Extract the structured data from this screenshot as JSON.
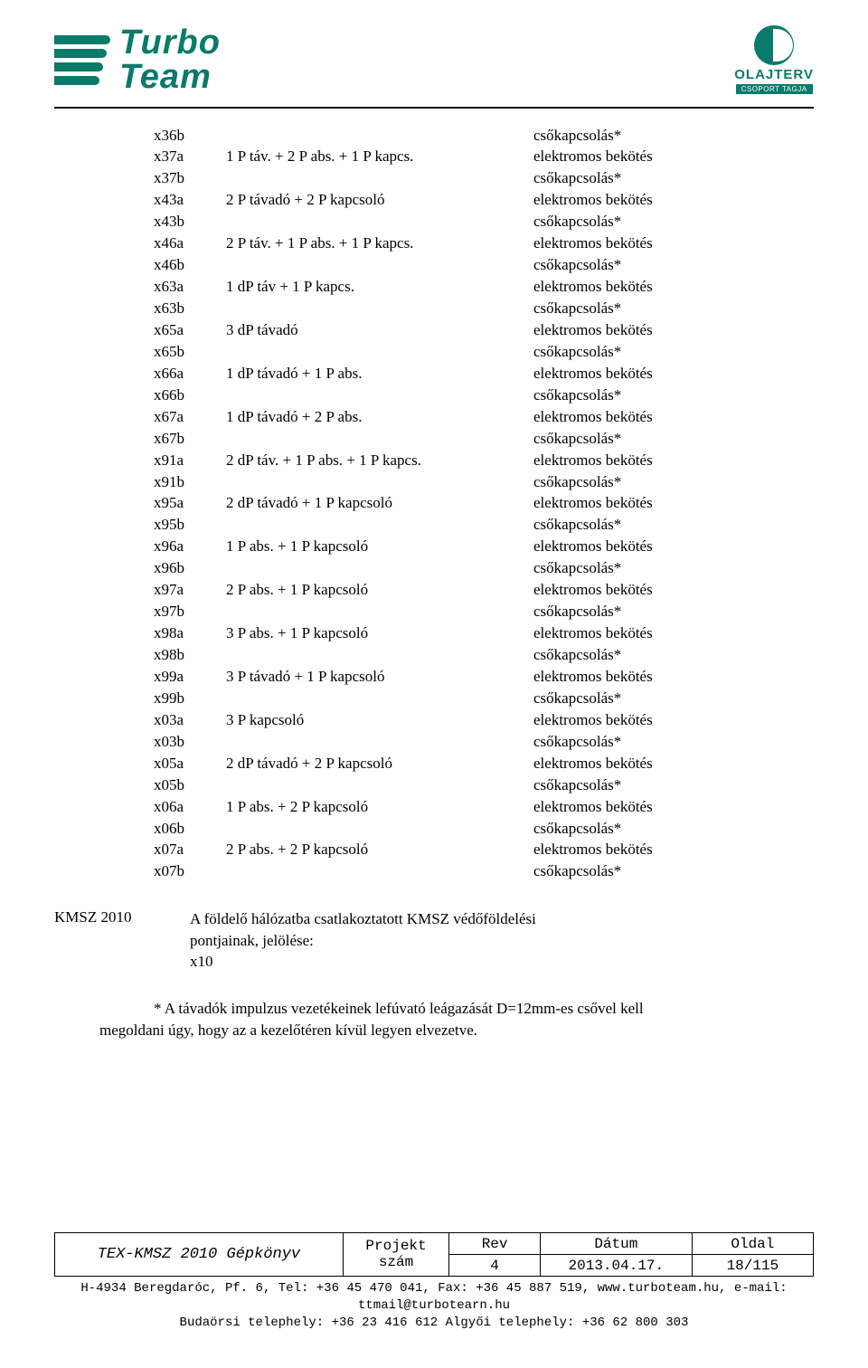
{
  "logo": {
    "word1": "Turbo",
    "word2": "Team",
    "right_name": "OLAJTERV",
    "right_sub": "CSOPORT TAGJA"
  },
  "rows": [
    {
      "code": "x36b",
      "mid": "",
      "right": "csőkapcsolás*"
    },
    {
      "code": "x37a",
      "mid": "1 P táv. + 2 P abs. + 1 P kapcs.",
      "right": "elektromos bekötés"
    },
    {
      "code": "x37b",
      "mid": "",
      "right": "csőkapcsolás*"
    },
    {
      "code": "x43a",
      "mid": "2 P távadó + 2 P kapcsoló",
      "right": "elektromos bekötés"
    },
    {
      "code": "x43b",
      "mid": "",
      "right": "csőkapcsolás*"
    },
    {
      "code": "x46a",
      "mid": "2 P táv. + 1 P abs. + 1 P kapcs.",
      "right": "elektromos bekötés"
    },
    {
      "code": "x46b",
      "mid": "",
      "right": "csőkapcsolás*"
    },
    {
      "code": "x63a",
      "mid": "1 dP táv + 1 P kapcs.",
      "right": "elektromos bekötés"
    },
    {
      "code": "x63b",
      "mid": "",
      "right": "csőkapcsolás*"
    },
    {
      "code": "x65a",
      "mid": "3 dP távadó",
      "right": "elektromos bekötés"
    },
    {
      "code": "x65b",
      "mid": "",
      "right": "csőkapcsolás*"
    },
    {
      "code": "x66a",
      "mid": "1 dP távadó + 1 P abs.",
      "right": "elektromos bekötés"
    },
    {
      "code": "x66b",
      "mid": "",
      "right": "csőkapcsolás*"
    },
    {
      "code": "x67a",
      "mid": "1 dP távadó  + 2 P abs.",
      "right": "elektromos bekötés"
    },
    {
      "code": "x67b",
      "mid": "",
      "right": "csőkapcsolás*"
    },
    {
      "code": "x91a",
      "mid": "2 dP táv. + 1 P abs. + 1 P kapcs.",
      "right": "elektromos bekötés"
    },
    {
      "code": "x91b",
      "mid": "",
      "right": "csőkapcsolás*"
    },
    {
      "code": "x95a",
      "mid": "2 dP távadó + 1 P kapcsoló",
      "right": "elektromos bekötés"
    },
    {
      "code": "x95b",
      "mid": "",
      "right": "csőkapcsolás*"
    },
    {
      "code": "x96a",
      "mid": "1 P abs. + 1 P kapcsoló",
      "right": "elektromos bekötés"
    },
    {
      "code": "x96b",
      "mid": "",
      "right": "csőkapcsolás*"
    },
    {
      "code": "x97a",
      "mid": "2 P abs. + 1 P kapcsoló",
      "right": "elektromos bekötés"
    },
    {
      "code": "x97b",
      "mid": "",
      "right": "csőkapcsolás*"
    },
    {
      "code": "x98a",
      "mid": "3 P abs. + 1 P kapcsoló",
      "right": "elektromos bekötés"
    },
    {
      "code": "x98b",
      "mid": "",
      "right": "csőkapcsolás*"
    },
    {
      "code": "x99a",
      "mid": "3 P távadó + 1 P kapcsoló",
      "right": "elektromos bekötés"
    },
    {
      "code": "x99b",
      "mid": "",
      "right": "csőkapcsolás*"
    },
    {
      "code": "x03a",
      "mid": "3 P kapcsoló",
      "right": "elektromos bekötés"
    },
    {
      "code": "x03b",
      "mid": "",
      "right": "csőkapcsolás*"
    },
    {
      "code": "x05a",
      "mid": "2 dP távadó + 2 P kapcsoló",
      "right": "elektromos bekötés"
    },
    {
      "code": "x05b",
      "mid": "",
      "right": "csőkapcsolás*"
    },
    {
      "code": "x06a",
      "mid": "1 P abs. + 2 P kapcsoló",
      "right": "elektromos bekötés"
    },
    {
      "code": "x06b",
      "mid": "",
      "right": "csőkapcsolás*"
    },
    {
      "code": "x07a",
      "mid": "2 P abs. + 2 P kapcsoló",
      "right": "elektromos bekötés"
    },
    {
      "code": "x07b",
      "mid": "",
      "right": "csőkapcsolás*"
    }
  ],
  "section": {
    "label": "KMSZ 2010",
    "text_l1": "A földelő hálózatba csatlakoztatott KMSZ védőföldelési",
    "text_l2": "pontjainak, jelölése:",
    "text_l3": "x10"
  },
  "note_l1": "* A távadók impulzus vezetékeinek lefúvató leágazását  D=12mm-es csővel kell",
  "note_l2": "megoldani úgy, hogy az a kezelőtéren kívül legyen elvezetve.",
  "footer": {
    "book": "TEX-KMSZ 2010 Gépkönyv",
    "h_proj1": "Projekt",
    "h_proj2": "szám",
    "h_rev": "Rev",
    "h_date": "Dátum",
    "h_page": "Oldal",
    "v_rev": "4",
    "v_date": "2013.04.17.",
    "v_page": "18/115",
    "c1": "H-4934 Beregdaróc, Pf. 6, Tel: +36 45 470 041, Fax: +36 45 887 519, www.turboteam.hu, e-mail:",
    "c2": "ttmail@turbotearn.hu",
    "c3": "Budaörsi telephely: +36 23 416 612 Algyői telephely: +36 62 800 303"
  }
}
